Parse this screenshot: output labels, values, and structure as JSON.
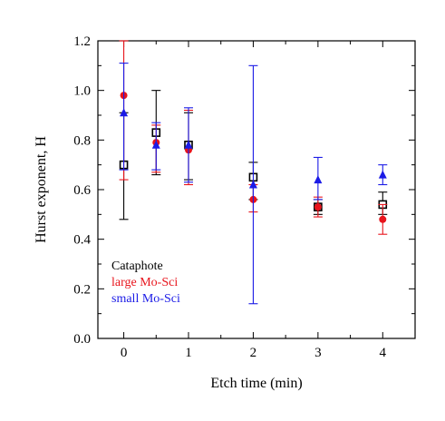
{
  "chart_data": {
    "type": "scatter",
    "xlabel": "Etch time (min)",
    "ylabel": "Hurst exponent, H",
    "xlim": [
      -0.4,
      4.5
    ],
    "ylim": [
      0.0,
      1.2
    ],
    "xticks": [
      0,
      1,
      2,
      3,
      4
    ],
    "xtick_labels": [
      "0",
      "1",
      "2",
      "3",
      "4"
    ],
    "yticks": [
      0.0,
      0.2,
      0.4,
      0.6,
      0.8,
      1.0,
      1.2
    ],
    "ytick_labels": [
      "0.0",
      "0.2",
      "0.4",
      "0.6",
      "0.8",
      "1.0",
      "1.2"
    ],
    "grid": false,
    "legend_position": "bottom-left",
    "series": [
      {
        "name": "Cataphote",
        "color": "#000000",
        "marker": "open-square",
        "x": [
          0,
          0.5,
          1,
          2,
          3,
          4
        ],
        "y": [
          0.7,
          0.83,
          0.78,
          0.65,
          0.53,
          0.54
        ],
        "yerr_low": [
          0.48,
          0.66,
          0.64,
          0.56,
          0.5,
          0.5
        ],
        "yerr_high": [
          0.91,
          1.0,
          0.91,
          0.71,
          0.56,
          0.59
        ]
      },
      {
        "name": "large Mo-Sci",
        "color": "#e8141c",
        "marker": "filled-circle",
        "x": [
          0,
          0.5,
          1,
          2,
          3,
          4
        ],
        "y": [
          0.98,
          0.79,
          0.76,
          0.56,
          0.53,
          0.48
        ],
        "yerr_low": [
          0.64,
          0.67,
          0.62,
          0.51,
          0.49,
          0.42
        ],
        "yerr_high": [
          1.2,
          0.86,
          0.92,
          0.62,
          0.57,
          0.54
        ]
      },
      {
        "name": "small Mo-Sci",
        "color": "#1b1be6",
        "marker": "filled-triangle",
        "x": [
          0,
          0.5,
          1,
          2,
          3,
          4
        ],
        "y": [
          0.91,
          0.78,
          0.78,
          0.62,
          0.64,
          0.66
        ],
        "yerr_low": [
          0.68,
          0.68,
          0.63,
          0.14,
          0.56,
          0.62
        ],
        "yerr_high": [
          1.11,
          0.87,
          0.93,
          1.1,
          0.73,
          0.7
        ]
      }
    ]
  }
}
